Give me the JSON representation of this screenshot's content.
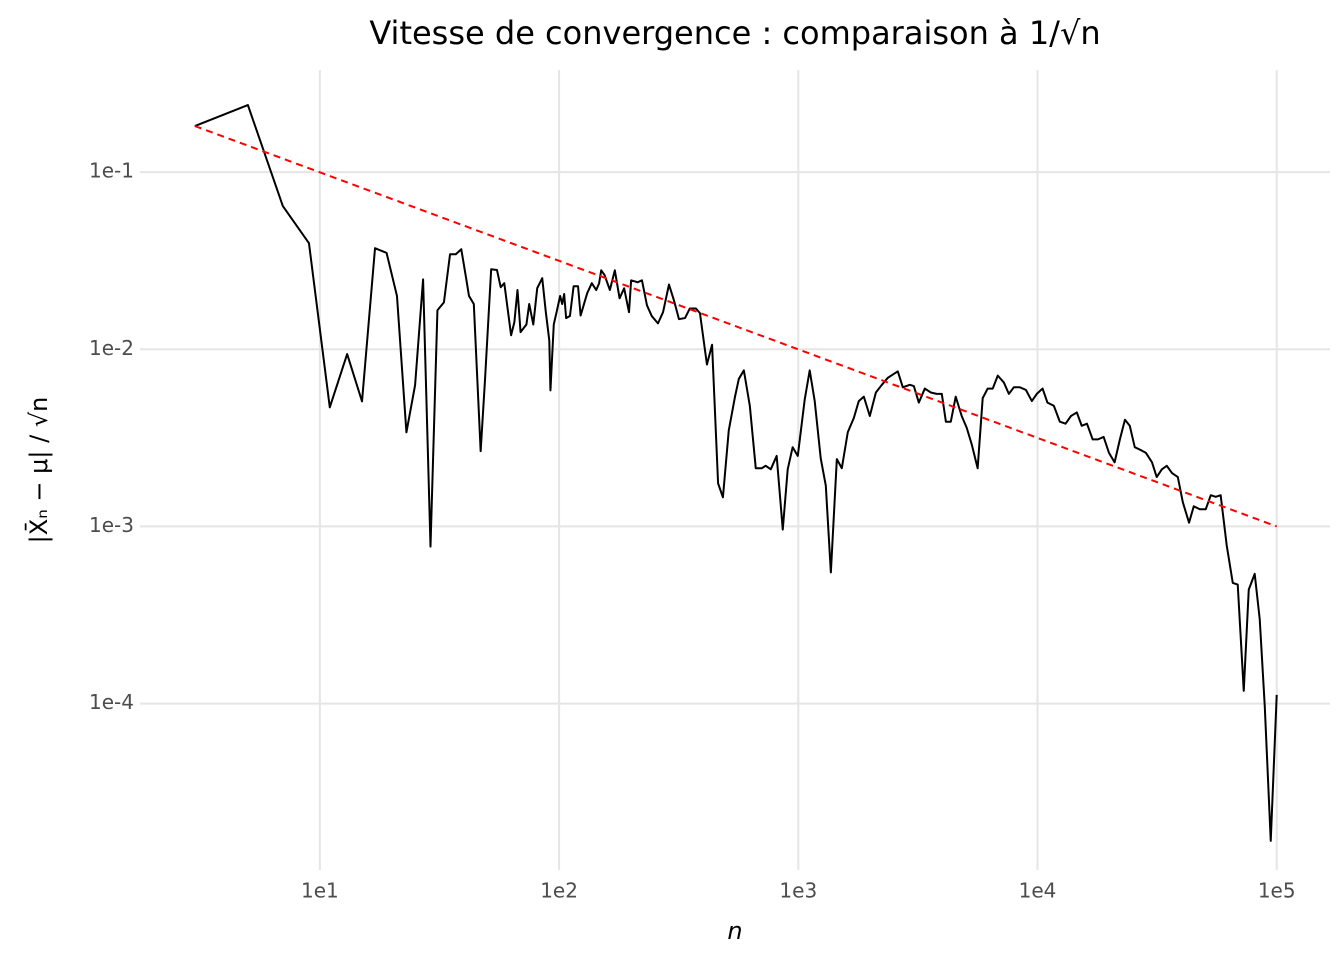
{
  "chart_data": {
    "type": "line",
    "title": "Vitesse de convergence : comparaison à 1/√n",
    "xlabel": "n",
    "ylabel": "|X̄ₙ − μ| / √n",
    "xscale": "log",
    "yscale": "log",
    "grid": true,
    "xlim": [
      1.77,
      167000
    ],
    "ylim": [
      1.15e-05,
      0.377
    ],
    "xticks": [
      {
        "value": 10,
        "label": "1e1"
      },
      {
        "value": 100,
        "label": "1e2"
      },
      {
        "value": 1000,
        "label": "1e3"
      },
      {
        "value": 10000,
        "label": "1e4"
      },
      {
        "value": 100000,
        "label": "1e5"
      }
    ],
    "yticks": [
      {
        "value": 0.0001,
        "label": "1e-4"
      },
      {
        "value": 0.001,
        "label": "1e-3"
      },
      {
        "value": 0.01,
        "label": "1e-2"
      },
      {
        "value": 0.1,
        "label": "1e-1"
      }
    ],
    "series": [
      {
        "color": "#000000",
        "linestyle": "solid",
        "x": [
          3,
          5,
          7,
          9,
          11,
          13,
          15,
          17,
          19,
          21,
          23,
          25,
          27,
          29,
          31,
          33,
          35,
          37,
          39,
          41,
          42,
          44,
          47,
          49,
          52,
          55,
          57,
          59,
          63,
          65,
          67,
          69,
          73,
          75,
          78,
          81,
          85,
          88,
          91,
          92,
          95,
          98,
          101,
          103,
          105,
          107,
          111,
          115,
          120,
          123,
          131,
          137,
          143,
          147,
          150,
          155,
          163,
          171,
          179,
          187,
          196,
          200,
          213,
          222,
          233,
          244,
          259,
          272,
          288,
          302,
          317,
          336,
          352,
          373,
          388,
          415,
          436,
          462,
          484,
          512,
          543,
          564,
          592,
          627,
          664,
          703,
          731,
          767,
          812,
          861,
          903,
          947,
          995,
          1064,
          1116,
          1171,
          1241,
          1303,
          1368,
          1449,
          1520,
          1610,
          1707,
          1790,
          1879,
          1990,
          2110,
          2235,
          2367,
          2483,
          2606,
          2735,
          2925,
          3040,
          3190,
          3380,
          3580,
          3790,
          3980,
          4140,
          4340,
          4550,
          4820,
          5060,
          5310,
          5620,
          5900,
          6190,
          6500,
          6820,
          7230,
          7590,
          7960,
          8440,
          8940,
          9470,
          9930,
          10500,
          11000,
          11700,
          12400,
          13100,
          13800,
          14600,
          15300,
          16100,
          17000,
          17900,
          18900,
          19900,
          21000,
          22100,
          23200,
          24300,
          25500,
          27000,
          28400,
          30100,
          31500,
          33100,
          34700,
          36500,
          38600,
          40500,
          43000,
          45000,
          47700,
          50500,
          53000,
          55600,
          58300,
          61800,
          65500,
          68700,
          72800,
          76400,
          80900,
          84900,
          89100,
          94400,
          100000
        ],
        "values": [
          0.182,
          0.239,
          0.0643,
          0.0397,
          0.0047,
          0.0094,
          0.00508,
          0.0372,
          0.035,
          0.02,
          0.0034,
          0.00627,
          0.0248,
          0.00077,
          0.0166,
          0.0184,
          0.0344,
          0.0344,
          0.0367,
          0.0245,
          0.02,
          0.018,
          0.00266,
          0.0067,
          0.0283,
          0.028,
          0.0224,
          0.0236,
          0.012,
          0.0142,
          0.0216,
          0.0125,
          0.0138,
          0.018,
          0.0138,
          0.0221,
          0.0252,
          0.0162,
          0.0112,
          0.00586,
          0.0138,
          0.0166,
          0.02,
          0.018,
          0.0205,
          0.015,
          0.0154,
          0.0227,
          0.0227,
          0.0155,
          0.0207,
          0.0236,
          0.0216,
          0.0236,
          0.0279,
          0.0262,
          0.0216,
          0.0279,
          0.0194,
          0.0221,
          0.0162,
          0.0245,
          0.0239,
          0.0245,
          0.0177,
          0.0154,
          0.014,
          0.0162,
          0.0232,
          0.0189,
          0.0148,
          0.015,
          0.017,
          0.017,
          0.016,
          0.0082,
          0.0106,
          0.00175,
          0.00146,
          0.00348,
          0.00535,
          0.0068,
          0.0076,
          0.0048,
          0.00213,
          0.00213,
          0.0022,
          0.0021,
          0.0025,
          0.00096,
          0.0021,
          0.0028,
          0.0025,
          0.00522,
          0.0076,
          0.0051,
          0.00242,
          0.0017,
          0.00055,
          0.0024,
          0.00213,
          0.0034,
          0.0041,
          0.0051,
          0.0054,
          0.0042,
          0.0057,
          0.0063,
          0.0069,
          0.0072,
          0.0075,
          0.0061,
          0.0063,
          0.0062,
          0.005,
          0.006,
          0.0057,
          0.0056,
          0.0056,
          0.0039,
          0.0039,
          0.0054,
          0.0042,
          0.0036,
          0.0029,
          0.00213,
          0.0053,
          0.006,
          0.006,
          0.0071,
          0.0065,
          0.0056,
          0.0061,
          0.0061,
          0.0059,
          0.0051,
          0.0056,
          0.006,
          0.005,
          0.0048,
          0.0039,
          0.0038,
          0.0042,
          0.0044,
          0.0037,
          0.0038,
          0.0031,
          0.0031,
          0.0032,
          0.0026,
          0.0023,
          0.0031,
          0.004,
          0.0037,
          0.0028,
          0.0027,
          0.0026,
          0.0023,
          0.0019,
          0.0021,
          0.0022,
          0.002,
          0.0019,
          0.00137,
          0.00105,
          0.0013,
          0.00125,
          0.00125,
          0.0015,
          0.00147,
          0.0015,
          0.00078,
          0.00048,
          0.00047,
          0.000118,
          0.00044,
          0.00054,
          0.0003,
          9.75e-05,
          1.68e-05,
          0.000112
        ]
      },
      {
        "color": "#ff0000",
        "linestyle": "dashed",
        "x": [
          3,
          100000
        ],
        "values": [
          0.182,
          0.001
        ]
      }
    ]
  }
}
